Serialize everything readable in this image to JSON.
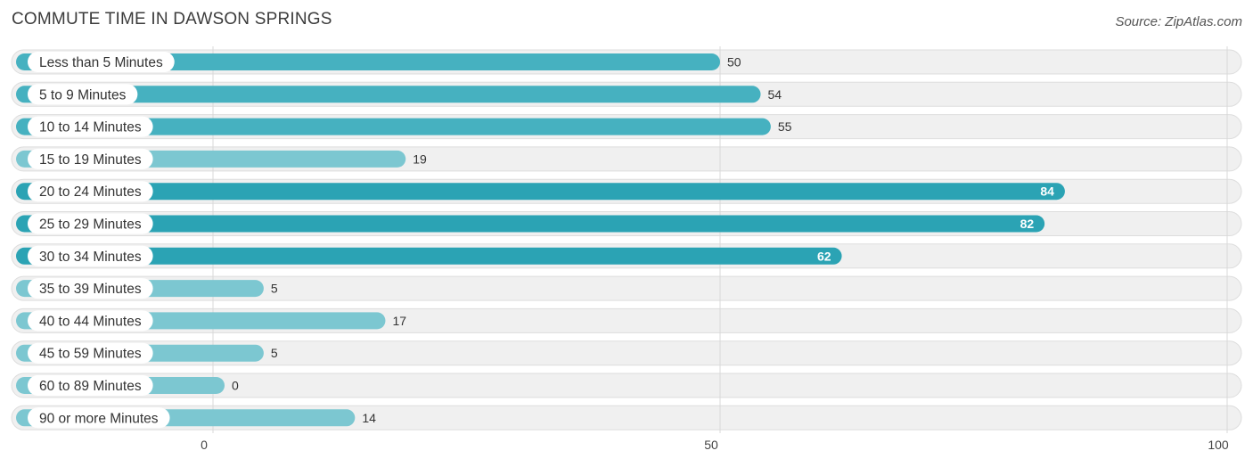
{
  "header": {
    "title": "COMMUTE TIME IN DAWSON SPRINGS",
    "source": "Source: ZipAtlas.com"
  },
  "chart_data": {
    "type": "bar",
    "orientation": "horizontal",
    "title": "COMMUTE TIME IN DAWSON SPRINGS",
    "categories": [
      "Less than 5 Minutes",
      "5 to 9 Minutes",
      "10 to 14 Minutes",
      "15 to 19 Minutes",
      "20 to 24 Minutes",
      "25 to 29 Minutes",
      "30 to 34 Minutes",
      "35 to 39 Minutes",
      "40 to 44 Minutes",
      "45 to 59 Minutes",
      "60 to 89 Minutes",
      "90 or more Minutes"
    ],
    "values": [
      50,
      54,
      55,
      19,
      84,
      82,
      62,
      5,
      17,
      5,
      0,
      14
    ],
    "xlim": [
      0,
      100
    ],
    "xticks": [
      0,
      50,
      100
    ],
    "grid": true,
    "colors": {
      "bar_dark": "#2ba3b4",
      "bar_mid": "#46b1c0",
      "bar_light": "#7cc7d1",
      "track": "#f0f0f0",
      "track_border": "#dddddd"
    }
  }
}
